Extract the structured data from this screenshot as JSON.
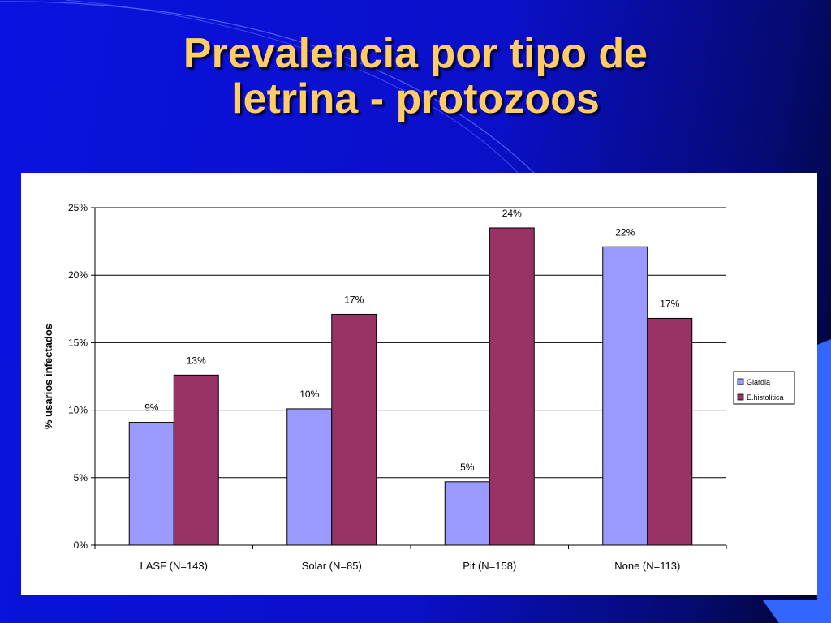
{
  "slide": {
    "title_line1": "Prevalencia por tipo de",
    "title_line2": "letrina - protozoos"
  },
  "colors": {
    "background": "#0a12e0",
    "title": "#ffcc66",
    "giardia": "#9999ff",
    "histolitica": "#993366"
  },
  "chart_data": {
    "type": "bar",
    "title": "",
    "xlabel": "",
    "ylabel": "% usarios infectados",
    "ylim": [
      0,
      25
    ],
    "yticks": [
      "0%",
      "5%",
      "10%",
      "15%",
      "20%",
      "25%"
    ],
    "grid": true,
    "legend_position": "right",
    "categories": [
      "LASF (N=143)",
      "Solar (N=85)",
      "Pit (N=158)",
      "None (N=113)"
    ],
    "series": [
      {
        "name": "Giardia",
        "color": "#9999ff",
        "values": [
          9.1,
          10.1,
          4.7,
          22.1
        ],
        "labels": [
          "9%",
          "10%",
          "5%",
          "22%"
        ]
      },
      {
        "name": "E.histolitica",
        "color": "#993366",
        "values": [
          12.6,
          17.1,
          23.5,
          16.8
        ],
        "labels": [
          "13%",
          "17%",
          "24%",
          "17%"
        ]
      }
    ]
  }
}
